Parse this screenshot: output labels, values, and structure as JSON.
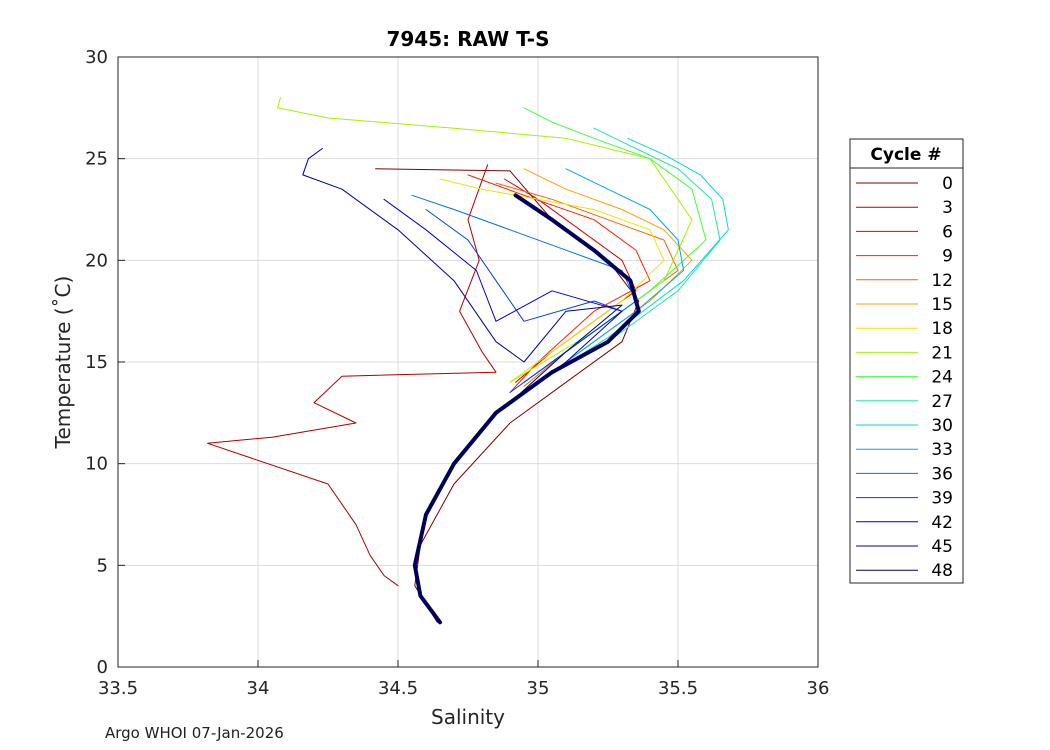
{
  "chart_data": {
    "type": "line",
    "title": "7945: RAW T-S",
    "xlabel": "Salinity",
    "ylabel": "Temperature (˚C)",
    "xlim": [
      33.5,
      36
    ],
    "ylim": [
      0,
      30
    ],
    "xticks": [
      "33.5",
      "34",
      "34.5",
      "35",
      "35.5",
      "36"
    ],
    "yticks": [
      "0",
      "5",
      "10",
      "15",
      "20",
      "25",
      "30"
    ],
    "xtick_values": [
      33.5,
      34,
      34.5,
      35,
      35.5,
      36
    ],
    "ytick_values": [
      0,
      5,
      10,
      15,
      20,
      25,
      30
    ],
    "grid": true,
    "legend_title": "Cycle #",
    "legend_position": "right",
    "series": [
      {
        "name": "0",
        "color": "#7f0000",
        "x": [
          34.42,
          34.9,
          35.05,
          35.25,
          35.36,
          35.3,
          35.1,
          34.9,
          34.7,
          34.58,
          34.56,
          34.64
        ],
        "y": [
          24.5,
          24.4,
          22.0,
          20.0,
          18.0,
          16.0,
          14.0,
          12.0,
          9.0,
          6.0,
          4.0,
          2.2
        ]
      },
      {
        "name": "3",
        "color": "#b20000",
        "x": [
          34.82,
          34.75,
          34.79,
          34.72,
          34.8,
          34.85,
          34.3,
          34.2,
          34.35,
          34.05,
          33.82,
          34.25,
          34.3,
          34.35,
          34.4,
          34.45,
          34.5
        ],
        "y": [
          24.7,
          22.0,
          20.0,
          17.5,
          15.5,
          14.5,
          14.3,
          13.0,
          12.0,
          11.3,
          11.0,
          9.0,
          8.0,
          7.0,
          5.5,
          4.5,
          4.0
        ]
      },
      {
        "name": "6",
        "color": "#e00000",
        "x": [
          34.88,
          35.0,
          35.15,
          35.3,
          35.35,
          35.2,
          35.05,
          34.92
        ],
        "y": [
          24.0,
          23.0,
          21.5,
          20.0,
          18.5,
          17.0,
          15.5,
          14.0
        ]
      },
      {
        "name": "9",
        "color": "#ff2000",
        "x": [
          34.75,
          34.95,
          35.2,
          35.35,
          35.4,
          35.2,
          35.0,
          34.9
        ],
        "y": [
          24.2,
          23.2,
          22.0,
          20.5,
          19.0,
          17.5,
          15.0,
          13.5
        ]
      },
      {
        "name": "12",
        "color": "#ff6000",
        "x": [
          34.85,
          35.05,
          35.25,
          35.45,
          35.5,
          35.3,
          35.1,
          34.95
        ],
        "y": [
          23.8,
          23.0,
          22.0,
          21.0,
          19.5,
          17.5,
          15.5,
          13.8
        ]
      },
      {
        "name": "15",
        "color": "#ffa000",
        "x": [
          34.95,
          35.1,
          35.3,
          35.45,
          35.55,
          35.4,
          35.2,
          35.0
        ],
        "y": [
          24.5,
          23.5,
          22.5,
          21.5,
          20.0,
          18.0,
          16.0,
          14.0
        ]
      },
      {
        "name": "18",
        "color": "#e8e800",
        "x": [
          34.65,
          34.8,
          35.0,
          35.2,
          35.4,
          35.45,
          35.3,
          35.1,
          34.9
        ],
        "y": [
          24.0,
          23.5,
          23.0,
          22.5,
          21.5,
          20.0,
          18.0,
          16.0,
          14.0
        ]
      },
      {
        "name": "21",
        "color": "#a8f000",
        "x": [
          34.08,
          34.07,
          34.25,
          34.7,
          35.1,
          35.4,
          35.55,
          35.45,
          35.2,
          34.9
        ],
        "y": [
          28.0,
          27.5,
          27.0,
          26.5,
          26.0,
          25.0,
          22.0,
          19.0,
          16.5,
          14.0
        ]
      },
      {
        "name": "24",
        "color": "#40ff40",
        "x": [
          34.95,
          35.05,
          35.2,
          35.4,
          35.55,
          35.6,
          35.4,
          35.15,
          34.95
        ],
        "y": [
          27.5,
          26.8,
          26.0,
          25.0,
          23.5,
          21.0,
          18.5,
          16.0,
          14.0
        ]
      },
      {
        "name": "27",
        "color": "#20e8a0",
        "x": [
          35.2,
          35.35,
          35.5,
          35.62,
          35.65,
          35.5,
          35.25,
          35.0
        ],
        "y": [
          26.5,
          25.5,
          24.5,
          23.0,
          21.0,
          18.5,
          16.0,
          14.0
        ]
      },
      {
        "name": "30",
        "color": "#00d8d8",
        "x": [
          35.32,
          35.45,
          35.58,
          35.66,
          35.68,
          35.52,
          35.25,
          35.0
        ],
        "y": [
          26.0,
          25.2,
          24.2,
          23.0,
          21.5,
          19.0,
          16.2,
          14.0
        ]
      },
      {
        "name": "33",
        "color": "#00a8e8",
        "x": [
          35.1,
          35.25,
          35.4,
          35.5,
          35.52,
          35.35,
          35.15,
          34.95
        ],
        "y": [
          24.5,
          23.5,
          22.5,
          21.0,
          19.5,
          17.5,
          15.5,
          13.5
        ]
      },
      {
        "name": "36",
        "color": "#0070f0",
        "x": [
          34.55,
          34.7,
          34.9,
          35.1,
          35.3,
          35.35,
          35.15,
          34.95
        ],
        "y": [
          23.2,
          22.5,
          21.5,
          20.5,
          19.5,
          18.0,
          16.0,
          14.0
        ]
      },
      {
        "name": "39",
        "color": "#0040e0",
        "x": [
          34.6,
          34.75,
          34.85,
          34.95,
          35.2,
          35.3,
          35.1,
          34.9
        ],
        "y": [
          22.5,
          21.0,
          19.0,
          17.0,
          18.0,
          17.5,
          15.5,
          13.5
        ]
      },
      {
        "name": "42",
        "color": "#0000d0",
        "x": [
          34.45,
          34.6,
          34.78,
          34.85,
          35.05,
          35.3,
          35.1,
          34.9
        ],
        "y": [
          23.0,
          21.5,
          19.5,
          17.0,
          18.5,
          17.5,
          15.0,
          13.0
        ]
      },
      {
        "name": "45",
        "color": "#000098",
        "x": [
          34.23,
          34.18,
          34.16,
          34.3,
          34.5,
          34.7,
          34.85,
          34.95,
          35.1,
          35.3,
          35.1,
          34.9
        ],
        "y": [
          25.5,
          25.0,
          24.2,
          23.5,
          21.5,
          19.0,
          16.0,
          15.0,
          17.5,
          17.8,
          15.5,
          13.0
        ]
      },
      {
        "name": "48",
        "color": "#00005a",
        "x": [
          34.92,
          35.05,
          35.2,
          35.33,
          35.36,
          35.25,
          35.05,
          34.85,
          34.7,
          34.6,
          34.56,
          34.58,
          34.65
        ],
        "y": [
          23.2,
          22.0,
          20.5,
          19.0,
          17.5,
          16.0,
          14.5,
          12.5,
          10.0,
          7.5,
          5.0,
          3.5,
          2.2
        ]
      }
    ]
  },
  "footer": "Argo WHOI 07-Jan-2026"
}
